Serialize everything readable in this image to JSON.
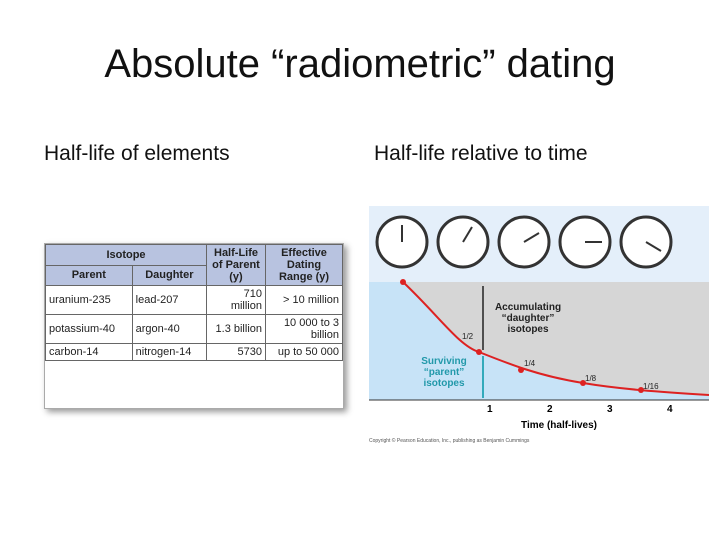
{
  "title": "Absolute “radiometric” dating",
  "left": {
    "heading": "Half-life of elements",
    "table": {
      "group_header": "Isotope",
      "headers": [
        "Parent",
        "Daughter",
        "Half-Life of Parent (y)",
        "Effective Dating Range (y)"
      ],
      "rows": [
        [
          "uranium-235",
          "lead-207",
          "710 million",
          "> 10 million"
        ],
        [
          "potassium-40",
          "argon-40",
          "1.3 billion",
          "10 000 to 3 billion"
        ],
        [
          "carbon-14",
          "nitrogen-14",
          "5730",
          "up to 50 000"
        ]
      ]
    }
  },
  "right": {
    "heading": "Half-life relative to time",
    "figure": {
      "accumulating": "Accumulating “daughter” isotopes",
      "surviving": "Surviving “parent” isotopes",
      "fractions": [
        "1/2",
        "1/4",
        "1/8",
        "1/16"
      ],
      "x_ticks": [
        "1",
        "2",
        "3",
        "4"
      ],
      "x_label": "Time (half-lives)",
      "credit": "Copyright © Pearson Education, Inc., publishing as Benjamin Cummings"
    }
  }
}
